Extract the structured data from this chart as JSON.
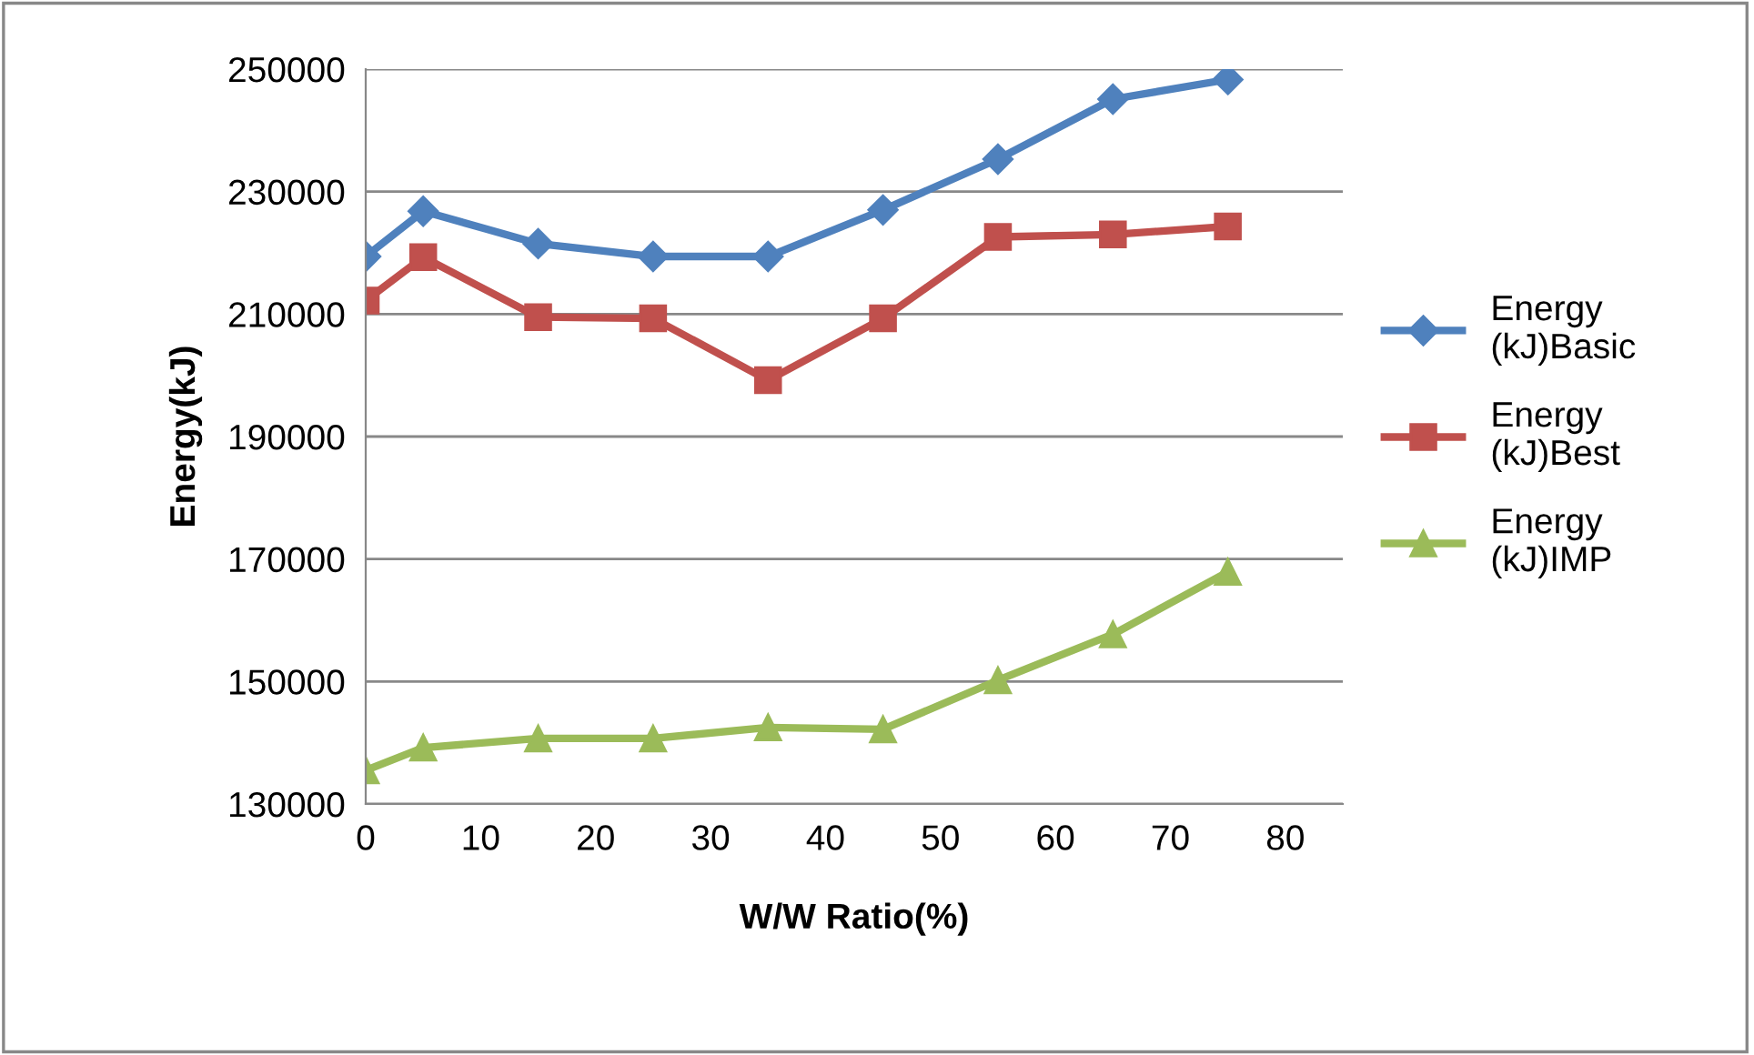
{
  "chart_data": {
    "type": "line",
    "xlabel": "W/W Ratio(%)",
    "ylabel": "Energy(kJ)",
    "x": [
      0,
      5,
      15,
      25,
      35,
      45,
      55,
      65,
      75
    ],
    "series": [
      {
        "name": "Energy (kJ)Basic",
        "color": "#4f81bd",
        "marker": "diamond",
        "values": [
          219400,
          226800,
          221500,
          219400,
          219400,
          227000,
          235300,
          245100,
          248300
        ]
      },
      {
        "name": "Energy (kJ)Best",
        "color": "#c0504d",
        "marker": "square",
        "values": [
          212200,
          219300,
          209500,
          209300,
          199200,
          209300,
          222600,
          223000,
          224300
        ]
      },
      {
        "name": "Energy (kJ)IMP",
        "color": "#9bbb59",
        "marker": "triangle",
        "values": [
          135500,
          139200,
          140700,
          140700,
          142500,
          142200,
          150200,
          157700,
          167900
        ]
      }
    ],
    "xlim": [
      0,
      85
    ],
    "xticks": [
      0,
      10,
      20,
      30,
      40,
      50,
      60,
      70,
      80
    ],
    "ylim": [
      130000,
      250000
    ],
    "yticks": [
      130000,
      150000,
      170000,
      190000,
      210000,
      230000,
      250000
    ],
    "grid": "y",
    "legend": "right",
    "line_style": "solid"
  }
}
